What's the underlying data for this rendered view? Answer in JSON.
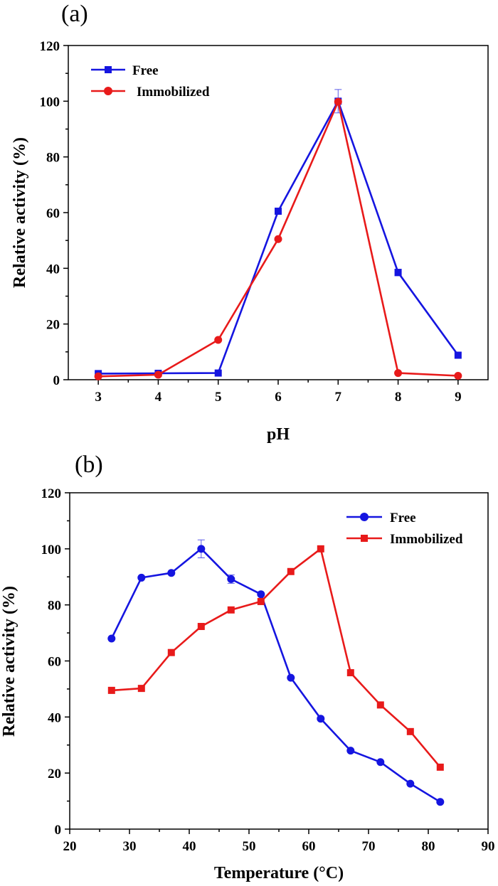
{
  "chart_data": [
    {
      "type": "line",
      "panel_label": "(a)",
      "xlabel": "pH",
      "ylabel": "Relative activity (%)",
      "xlim": [
        2.5,
        9.5
      ],
      "ylim": [
        0,
        120
      ],
      "xticks": [
        3,
        4,
        5,
        6,
        7,
        8,
        9
      ],
      "yticks": [
        0,
        20,
        40,
        60,
        80,
        100,
        120
      ],
      "legend_position": "top-left",
      "series": [
        {
          "name": "Free",
          "color": "#1515e0",
          "marker": "square",
          "x": [
            3,
            4,
            5,
            6,
            7,
            8,
            9
          ],
          "y": [
            2.2,
            2.3,
            2.4,
            60.5,
            100,
            38.5,
            8.8
          ],
          "error": [
            0,
            0,
            0,
            0,
            4.2,
            1.2,
            0
          ]
        },
        {
          "name": "Immobilized",
          "color": "#e81a1a",
          "marker": "circle",
          "x": [
            3,
            4,
            5,
            6,
            7,
            8,
            9
          ],
          "y": [
            1.2,
            1.8,
            14.3,
            50.5,
            99.8,
            2.4,
            1.4
          ],
          "error": [
            0,
            0,
            0,
            0,
            0,
            0,
            0
          ]
        }
      ]
    },
    {
      "type": "line",
      "panel_label": "(b)",
      "xlabel": "Temperature (°C)",
      "ylabel": "Relative activity (%)",
      "xlim": [
        20,
        90
      ],
      "ylim": [
        0,
        120
      ],
      "xticks": [
        20,
        30,
        40,
        50,
        60,
        70,
        80,
        90
      ],
      "yticks": [
        0,
        20,
        40,
        60,
        80,
        100,
        120
      ],
      "legend_position": "top-right",
      "series": [
        {
          "name": "Free",
          "color": "#1515e0",
          "marker": "circle",
          "x": [
            27,
            32,
            37,
            42,
            47,
            52,
            57,
            62,
            67,
            72,
            77,
            82
          ],
          "y": [
            68,
            89.7,
            91.4,
            100,
            89.2,
            83.8,
            54,
            39.4,
            28,
            23.9,
            16.2,
            9.7
          ],
          "error": [
            0,
            0,
            0,
            3.2,
            1.5,
            0,
            0,
            0,
            0,
            0,
            0,
            0
          ]
        },
        {
          "name": "Immobilized",
          "color": "#e81a1a",
          "marker": "square",
          "x": [
            27,
            32,
            37,
            42,
            47,
            52,
            57,
            62,
            67,
            72,
            77,
            82
          ],
          "y": [
            49.5,
            50.2,
            63,
            72.3,
            78.2,
            81.2,
            91.9,
            100,
            55.8,
            44.3,
            34.8,
            22.1
          ],
          "error": [
            0,
            0,
            0,
            0,
            0,
            0,
            0,
            0,
            0,
            0,
            0,
            0
          ]
        }
      ]
    }
  ]
}
